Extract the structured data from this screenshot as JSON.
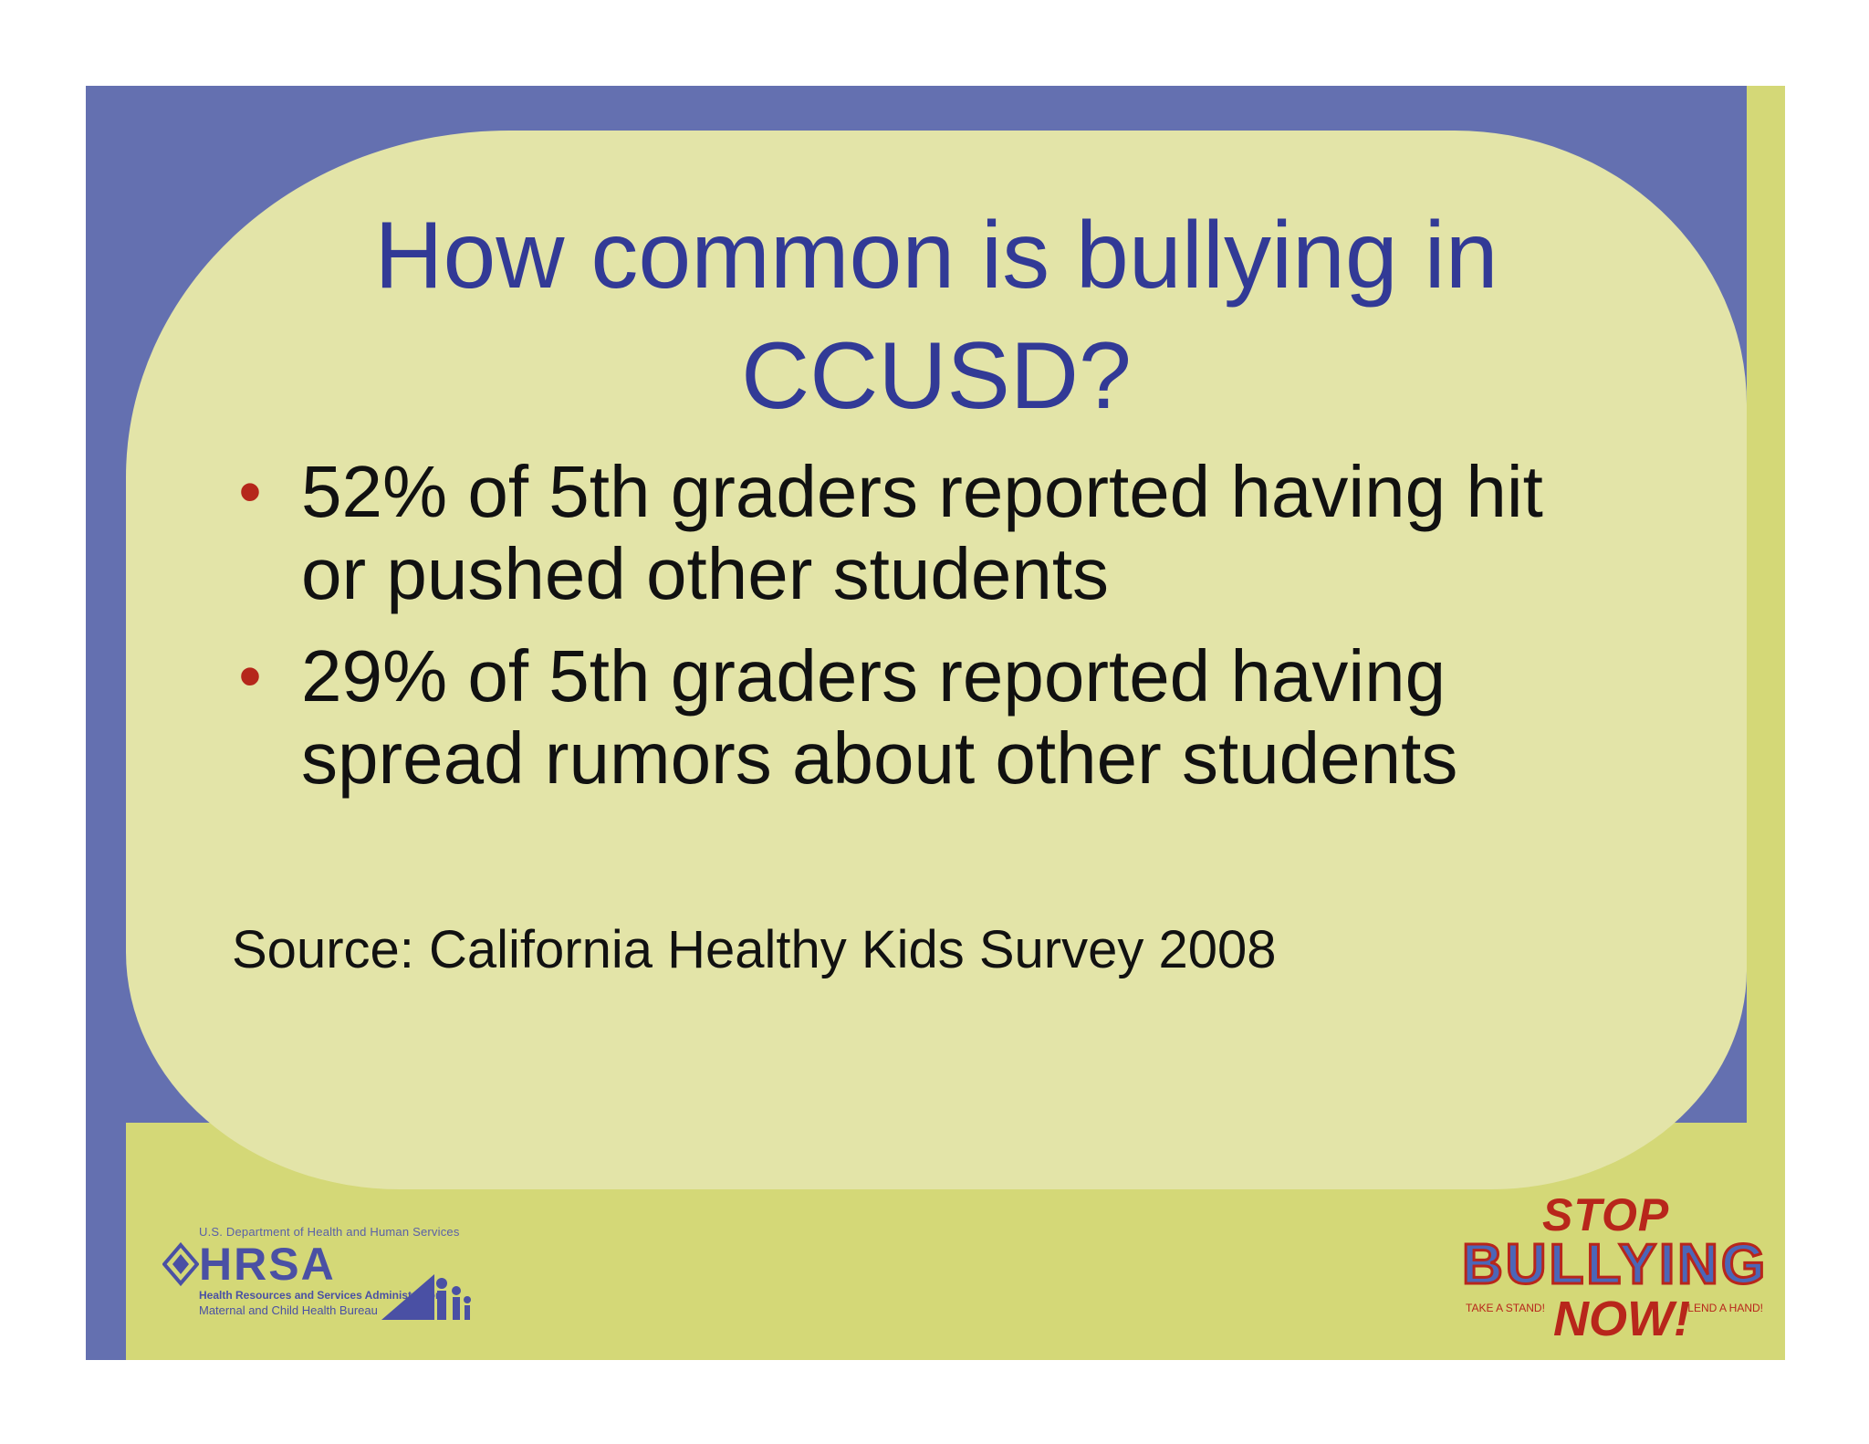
{
  "slide": {
    "title_line1": "How common is bullying in",
    "title_line2": "CCUSD?",
    "bullets": [
      {
        "line1": "52% of 5th graders reported having hit",
        "line2": "or pushed other students"
      },
      {
        "line1": "29% of 5th graders reported having",
        "line2": "spread rumors about other students"
      }
    ],
    "bullet_glyph": "•",
    "source": "Source:  California Healthy Kids Survey 2008"
  },
  "logos": {
    "hrsa": {
      "dept": "U.S. Department of Health and Human Services",
      "word": "HRSA",
      "sub1": "Health Resources and Services Administration",
      "sub2": "Maternal and Child Health Bureau",
      "icon": "people-icon"
    },
    "stop_bullying": {
      "stop": "STOP",
      "bullying": "BULLYING",
      "now": "NOW!",
      "left_tag": "TAKE A STAND!",
      "right_tag": "LEND A HAND!"
    }
  },
  "colors": {
    "background_blue": "#6470b0",
    "panel": "#e3e4a8",
    "strip": "#d4d877",
    "title": "#323a96",
    "bullet": "#b5271b"
  }
}
